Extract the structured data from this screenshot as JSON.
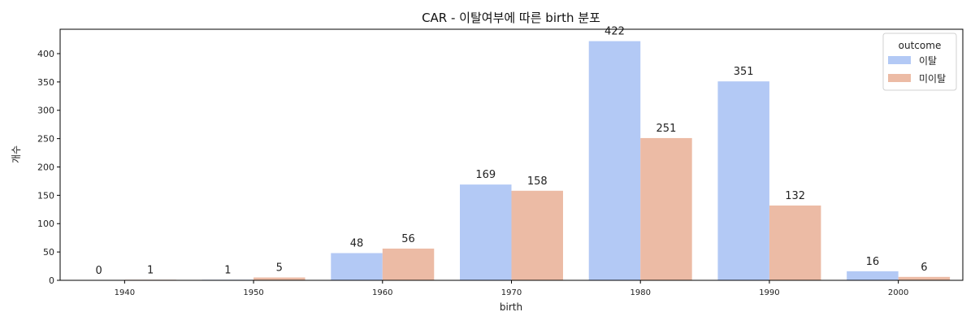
{
  "chart_data": {
    "type": "bar",
    "title": "CAR - 이탈여부에 따른 birth 분포",
    "xlabel": "birth",
    "ylabel": "개수",
    "categories": [
      "1940",
      "1950",
      "1960",
      "1970",
      "1980",
      "1990",
      "2000"
    ],
    "series": [
      {
        "name": "이탈",
        "color": "#b3c9f5",
        "values": [
          0,
          1,
          48,
          169,
          422,
          351,
          16
        ]
      },
      {
        "name": "미이탈",
        "color": "#ecbba5",
        "values": [
          1,
          5,
          56,
          158,
          251,
          132,
          6
        ]
      }
    ],
    "ylim": [
      0,
      443
    ],
    "yticks": [
      0,
      50,
      100,
      150,
      200,
      250,
      300,
      350,
      400
    ],
    "legend": {
      "title": "outcome",
      "position": "top-right"
    },
    "grid": false
  }
}
